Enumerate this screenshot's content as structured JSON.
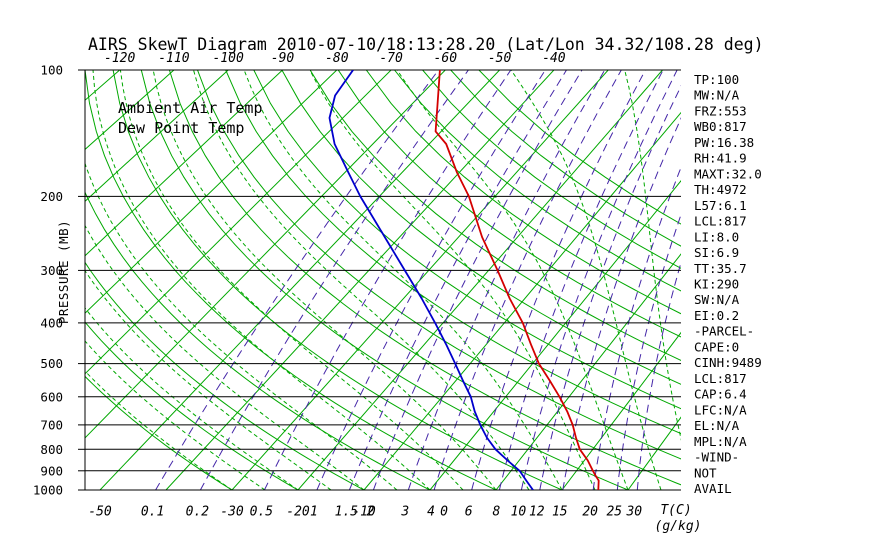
{
  "legend": {
    "ambient": "Ambient Air Temp",
    "dew": "Dew Point Temp"
  },
  "axes": {
    "pressure_label": "PRESSURE (MB)",
    "temp_unit": "T(C)",
    "mixing_unit": "(g/kg)"
  },
  "colors": {
    "temperature_red": "#d40000",
    "dewpoint_blue": "#0000cc",
    "adiabat_green": "#00a800",
    "mixing_purple": "#4527a8",
    "axis_black": "#000000"
  },
  "panel": {
    "lines": [
      "TP:100",
      "MW:N/A",
      "FRZ:553",
      "WB0:817",
      "PW:16.38",
      "RH:41.9",
      "MAXT:32.0",
      "TH:4972",
      "L57:6.1",
      "LCL:817",
      "LI:8.0",
      "SI:6.9",
      "TT:35.7",
      "KI:290",
      "SW:N/A",
      "EI:0.2",
      "-PARCEL-",
      "CAPE:0",
      "CINH:9489",
      "LCL:817",
      "CAP:6.4",
      "LFC:N/A",
      "EL:N/A",
      "MPL:N/A",
      "-WIND-",
      "NOT",
      "AVAIL"
    ]
  },
  "chart_data": {
    "type": "line",
    "subtype": "skewt_log_p",
    "title": "AIRS SkewT Diagram 2010-07-10/18:13:28.20 (Lat/Lon 34.32/108.28 deg)",
    "x_axis": {
      "label": "T(C)",
      "bottom_tick_labels_c": [
        -50,
        -30,
        -20,
        -10,
        0
      ],
      "top_tick_labels_c": [
        -120,
        -110,
        -100,
        -90,
        -80,
        -70,
        -60,
        -50,
        -40
      ]
    },
    "y_axis": {
      "label": "PRESSURE (MB)",
      "scale": "log",
      "range_mb": [
        100,
        1000
      ],
      "ticks_mb": [
        100,
        200,
        300,
        400,
        500,
        600,
        700,
        800,
        900,
        1000
      ]
    },
    "isotherms_c": {
      "start": -130,
      "end": 40,
      "step": 10
    },
    "dry_adiabats_theta_c": {
      "start": -30,
      "end": 150,
      "step": 10
    },
    "moist_adiabats_start_c_at_1000mb": {
      "start": -30,
      "end": 40,
      "step": 5
    },
    "mixing_ratio_lines_g_per_kg": [
      0.1,
      0.2,
      0.5,
      1,
      1.5,
      2,
      3,
      4,
      6,
      8,
      10,
      12,
      15,
      20,
      25,
      30
    ],
    "series": [
      {
        "name": "Ambient Air Temp",
        "color": "#d40000",
        "points_p_mb_t_c": [
          [
            1000,
            25.5
          ],
          [
            950,
            24.5
          ],
          [
            925,
            23.5
          ],
          [
            900,
            22.5
          ],
          [
            850,
            20.5
          ],
          [
            800,
            18.0
          ],
          [
            750,
            16.0
          ],
          [
            700,
            14.0
          ],
          [
            650,
            11.5
          ],
          [
            600,
            8.5
          ],
          [
            550,
            5.0
          ],
          [
            500,
            1.0
          ],
          [
            450,
            -2.8
          ],
          [
            400,
            -7.0
          ],
          [
            350,
            -12.5
          ],
          [
            300,
            -18.5
          ],
          [
            250,
            -26.0
          ],
          [
            200,
            -34.5
          ],
          [
            175,
            -40.5
          ],
          [
            150,
            -47.0
          ],
          [
            140,
            -51.0
          ],
          [
            120,
            -55.5
          ],
          [
            100,
            -61.0
          ]
        ]
      },
      {
        "name": "Dew Point Temp",
        "color": "#0000cc",
        "points_p_mb_t_c": [
          [
            1000,
            15.6
          ],
          [
            950,
            13.5
          ],
          [
            900,
            11.3
          ],
          [
            850,
            8.2
          ],
          [
            800,
            5.0
          ],
          [
            750,
            2.2
          ],
          [
            700,
            -0.4
          ],
          [
            650,
            -3.0
          ],
          [
            600,
            -5.5
          ],
          [
            550,
            -8.8
          ],
          [
            500,
            -12.4
          ],
          [
            450,
            -16.5
          ],
          [
            400,
            -21.3
          ],
          [
            350,
            -27.0
          ],
          [
            300,
            -34.0
          ],
          [
            250,
            -42.5
          ],
          [
            200,
            -53.3
          ],
          [
            175,
            -59.5
          ],
          [
            150,
            -66.8
          ],
          [
            130,
            -72.4
          ],
          [
            115,
            -75.5
          ],
          [
            100,
            -77.0
          ]
        ]
      }
    ]
  }
}
